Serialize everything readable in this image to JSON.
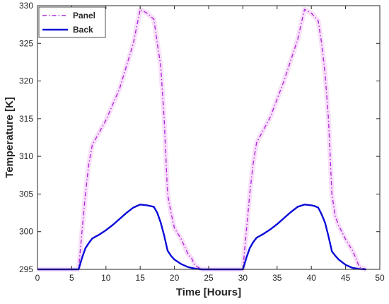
{
  "chart_data": {
    "type": "line",
    "xlabel": "Time [Hours]",
    "ylabel": "Temperature [K]",
    "xlim": [
      0,
      50
    ],
    "ylim": [
      295,
      330
    ],
    "x_ticks": [
      0,
      5,
      10,
      15,
      20,
      25,
      30,
      35,
      40,
      45,
      50
    ],
    "y_ticks": [
      295,
      300,
      305,
      310,
      315,
      320,
      325,
      330
    ],
    "grid": false,
    "legend_position": "top-left",
    "series": [
      {
        "name": "Panel",
        "color": "#b02bd8",
        "style": "dash-dot",
        "x": [
          0,
          6,
          6.5,
          7,
          7.5,
          8,
          10,
          12,
          14,
          15,
          16,
          17,
          17.5,
          18,
          18.5,
          19,
          19.5,
          20,
          21,
          22,
          22.5,
          23,
          24,
          30,
          30.5,
          31,
          31.5,
          32,
          34,
          36,
          38,
          39,
          40,
          41,
          41.5,
          42,
          42.5,
          43,
          43.5,
          44,
          45,
          46,
          46.5,
          47,
          48
        ],
        "y": [
          295,
          295,
          300,
          305,
          309,
          311.5,
          314.8,
          319,
          325,
          329.5,
          329,
          328.2,
          325,
          322,
          315,
          305,
          302.5,
          300.5,
          299,
          297,
          296.5,
          295.5,
          295,
          295,
          300,
          305,
          309,
          311.8,
          315.2,
          320,
          325.5,
          329.5,
          329,
          328,
          325,
          321,
          315,
          305,
          302,
          300.8,
          299,
          297.5,
          296.5,
          295.3,
          295
        ]
      },
      {
        "name": "Back",
        "color": "#0b0bd8",
        "style": "solid",
        "x": [
          0,
          6,
          6.5,
          7,
          7.5,
          8,
          9,
          10,
          11,
          12,
          13,
          14,
          15,
          16,
          16.5,
          17,
          17.5,
          18,
          18.5,
          19,
          19.5,
          20,
          21,
          22,
          23,
          24,
          30,
          30.5,
          31,
          31.5,
          32,
          33,
          34,
          35,
          36,
          37,
          38,
          39,
          40,
          40.5,
          41,
          41.5,
          42,
          42.5,
          43,
          43.5,
          44,
          45,
          46,
          47,
          48
        ],
        "y": [
          295,
          295,
          296.5,
          297.8,
          298.5,
          299.1,
          299.6,
          300.2,
          300.9,
          301.7,
          302.5,
          303.2,
          303.6,
          303.5,
          303.4,
          303.3,
          302.5,
          301.2,
          299.5,
          297.5,
          296.8,
          296.3,
          295.7,
          295.3,
          295.1,
          295,
          295,
          296.5,
          297.8,
          298.6,
          299.2,
          299.7,
          300.3,
          301,
          301.8,
          302.6,
          303.3,
          303.6,
          303.5,
          303.4,
          303.2,
          302.3,
          301.2,
          299.4,
          297.4,
          296.8,
          296.3,
          295.6,
          295.2,
          295.05,
          295
        ]
      }
    ]
  }
}
